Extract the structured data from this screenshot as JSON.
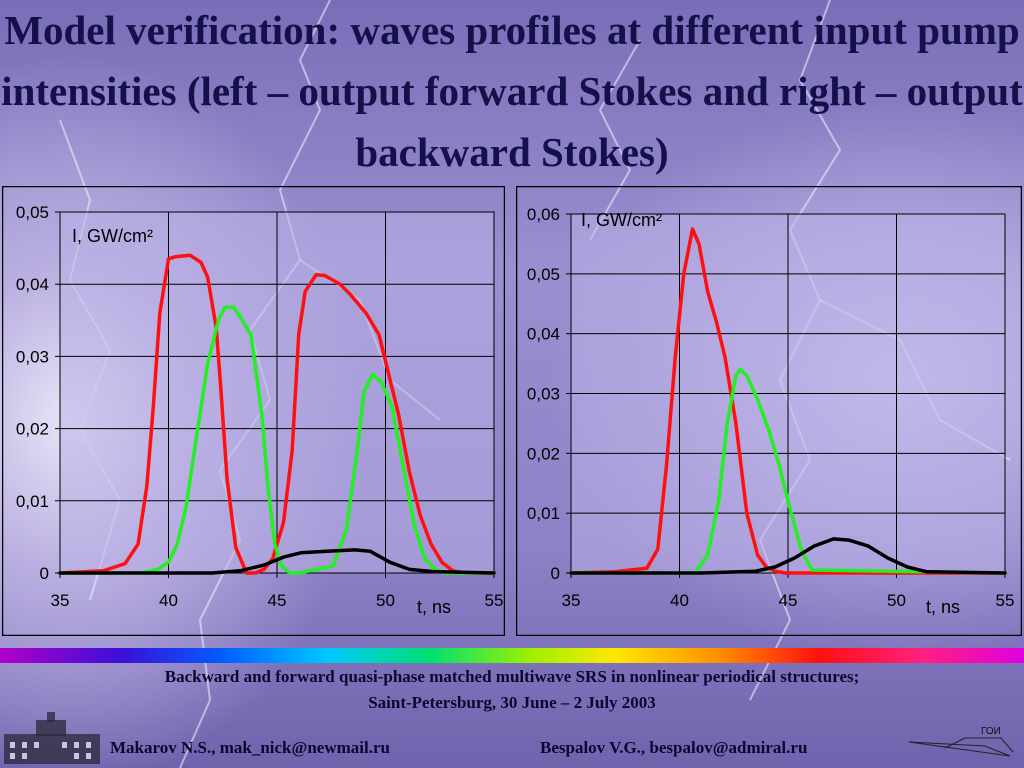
{
  "title": "Model verification: waves profiles at different input pump intensities (left – output forward Stokes and right – output backward Stokes)",
  "colors": {
    "red": "#ff1010",
    "green": "#22f022",
    "black": "#000000",
    "plot_bg": "#b9b0e6",
    "grid": "#000000"
  },
  "chart_data": [
    {
      "type": "line",
      "ylabel": "I, GW/cm²",
      "xlabel": "t, ns",
      "xlim": [
        35,
        55
      ],
      "ylim": [
        0,
        0.05
      ],
      "x_ticks": [
        35,
        40,
        45,
        50,
        55
      ],
      "y_ticks": [
        0,
        0.01,
        0.02,
        0.03,
        0.04,
        0.05
      ],
      "x_tick_labels": [
        "35",
        "40",
        "45",
        "50",
        "55"
      ],
      "y_tick_labels": [
        "0",
        "0,01",
        "0,02",
        "0,03",
        "0,04",
        "0,05"
      ],
      "grid": true,
      "series": [
        {
          "color": "red",
          "x": [
            35,
            37,
            38,
            38.6,
            39,
            39.3,
            39.6,
            40,
            40.3,
            41,
            41.5,
            41.8,
            42.2,
            42.4,
            42.7,
            43.1,
            43.6,
            44,
            44.4,
            44.8,
            45.3,
            45.7,
            46,
            46.3,
            46.8,
            47.2,
            47.9,
            48.4,
            49.1,
            49.7,
            50.6,
            51.1,
            51.6,
            52.1,
            52.6,
            53.1,
            53.7,
            54.3,
            55
          ],
          "y": [
            0,
            0.0003,
            0.0013,
            0.004,
            0.012,
            0.023,
            0.036,
            0.0435,
            0.0438,
            0.044,
            0.043,
            0.041,
            0.034,
            0.026,
            0.013,
            0.0035,
            0,
            0,
            0.0005,
            0.002,
            0.007,
            0.017,
            0.033,
            0.039,
            0.0413,
            0.0412,
            0.04,
            0.0385,
            0.036,
            0.033,
            0.022,
            0.014,
            0.008,
            0.004,
            0.0015,
            0.0003,
            0,
            0,
            0
          ]
        },
        {
          "color": "green",
          "x": [
            35,
            38.7,
            39.5,
            40,
            40.4,
            40.8,
            41.3,
            41.8,
            42.3,
            42.6,
            43,
            43.3,
            43.8,
            44.3,
            44.6,
            44.9,
            45.2,
            45.6,
            46,
            47.6,
            48.2,
            48.7,
            49,
            49.4,
            49.8,
            50.3,
            50.8,
            51.3,
            51.8,
            52.3,
            52.7,
            55
          ],
          "y": [
            0,
            0,
            0.0005,
            0.0015,
            0.004,
            0.009,
            0.019,
            0.029,
            0.035,
            0.0368,
            0.0368,
            0.0355,
            0.033,
            0.022,
            0.0115,
            0.004,
            0.001,
            0,
            0,
            0.001,
            0.006,
            0.017,
            0.025,
            0.0275,
            0.0265,
            0.023,
            0.015,
            0.007,
            0.002,
            0.0005,
            0,
            0
          ]
        },
        {
          "color": "black",
          "x": [
            35,
            40,
            42,
            43.3,
            44.4,
            45.3,
            46.1,
            47.3,
            48.6,
            49.3,
            50.2,
            51.1,
            52.2,
            55
          ],
          "y": [
            0,
            0,
            0,
            0.0003,
            0.0011,
            0.0022,
            0.0028,
            0.003,
            0.0032,
            0.003,
            0.0015,
            0.0005,
            0.0002,
            0
          ]
        }
      ]
    },
    {
      "type": "line",
      "ylabel": "I, GW/cm²",
      "xlabel": "t, ns",
      "xlim": [
        35,
        55
      ],
      "ylim": [
        0,
        0.06
      ],
      "x_ticks": [
        35,
        40,
        45,
        50,
        55
      ],
      "y_ticks": [
        0,
        0.01,
        0.02,
        0.03,
        0.04,
        0.05,
        0.06
      ],
      "x_tick_labels": [
        "35",
        "40",
        "45",
        "50",
        "55"
      ],
      "y_tick_labels": [
        "0",
        "0,01",
        "0,02",
        "0,03",
        "0,04",
        "0,05",
        "0,06"
      ],
      "grid": true,
      "series": [
        {
          "color": "red",
          "x": [
            35,
            37,
            38.5,
            39,
            39.4,
            39.8,
            40.2,
            40.6,
            40.9,
            41.3,
            41.7,
            42.1,
            42.6,
            43.1,
            43.6,
            44,
            44.4,
            44.9,
            45.3,
            55
          ],
          "y": [
            0,
            0.0002,
            0.0008,
            0.004,
            0.018,
            0.036,
            0.05,
            0.0575,
            0.055,
            0.047,
            0.042,
            0.036,
            0.025,
            0.01,
            0.003,
            0.001,
            0.0003,
            0,
            0,
            0
          ]
        },
        {
          "color": "green",
          "x": [
            35,
            40.7,
            41.3,
            41.8,
            42.2,
            42.6,
            42.8,
            43.1,
            43.6,
            44.1,
            44.6,
            45,
            45.6,
            46.1,
            55
          ],
          "y": [
            0,
            0,
            0.003,
            0.012,
            0.025,
            0.033,
            0.034,
            0.033,
            0.029,
            0.024,
            0.018,
            0.012,
            0.004,
            0.0005,
            0
          ]
        },
        {
          "color": "black",
          "x": [
            35,
            41,
            43.5,
            44.4,
            45.3,
            46.2,
            47.1,
            47.8,
            48.7,
            49.6,
            50.5,
            51.4,
            55
          ],
          "y": [
            0,
            0,
            0.0003,
            0.001,
            0.0025,
            0.0045,
            0.0057,
            0.0055,
            0.0045,
            0.0025,
            0.001,
            0.0002,
            0
          ]
        }
      ]
    }
  ],
  "footer": {
    "line1": "Backward and forward quasi-phase matched multiwave SRS in nonlinear periodical structures;",
    "line2": "Saint-Petersburg, 30 June – 2 July 2003",
    "author1": "Makarov N.S., mak_nick@newmail.ru",
    "author2": "Bespalov V.G., bespalov@admiral.ru",
    "logo_text": "ГОИ"
  }
}
